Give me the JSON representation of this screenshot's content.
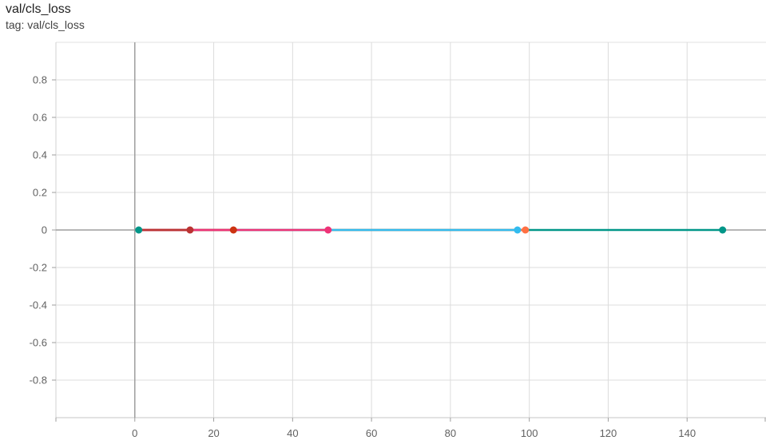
{
  "chart_title": "val/cls_loss",
  "tag_text": "tag: val/cls_loss",
  "chart_data": {
    "type": "line",
    "title": "val/cls_loss",
    "xlabel": "",
    "ylabel": "",
    "xlim": [
      -20,
      160
    ],
    "ylim": [
      -1.0,
      1.0
    ],
    "x_ticks": [
      "0",
      "20",
      "40",
      "60",
      "80",
      "100",
      "120",
      "140"
    ],
    "x_tick_values": [
      0,
      20,
      40,
      60,
      80,
      100,
      120,
      140
    ],
    "y_ticks": [
      "0.8",
      "0.6",
      "0.4",
      "0.2",
      "0",
      "-0.2",
      "-0.4",
      "-0.6",
      "-0.8"
    ],
    "y_tick_values": [
      0.8,
      0.6,
      0.4,
      0.2,
      0,
      -0.2,
      -0.4,
      -0.6,
      -0.8
    ],
    "grid": true,
    "legend": "none",
    "series": [
      {
        "color": "#009688",
        "x": [
          1,
          149
        ],
        "y": [
          0,
          0
        ]
      },
      {
        "color": "#ff7043",
        "x": [
          1,
          99
        ],
        "y": [
          0,
          0
        ]
      },
      {
        "color": "#33bbee",
        "x": [
          1,
          97
        ],
        "y": [
          0,
          0
        ]
      },
      {
        "color": "#cc3311",
        "x": [
          1,
          25
        ],
        "y": [
          0,
          0
        ]
      },
      {
        "color": "#ee3377",
        "x": [
          1,
          49
        ],
        "y": [
          0,
          0
        ]
      },
      {
        "color": "#bb3333",
        "x": [
          1,
          14
        ],
        "y": [
          0,
          0
        ]
      }
    ]
  }
}
